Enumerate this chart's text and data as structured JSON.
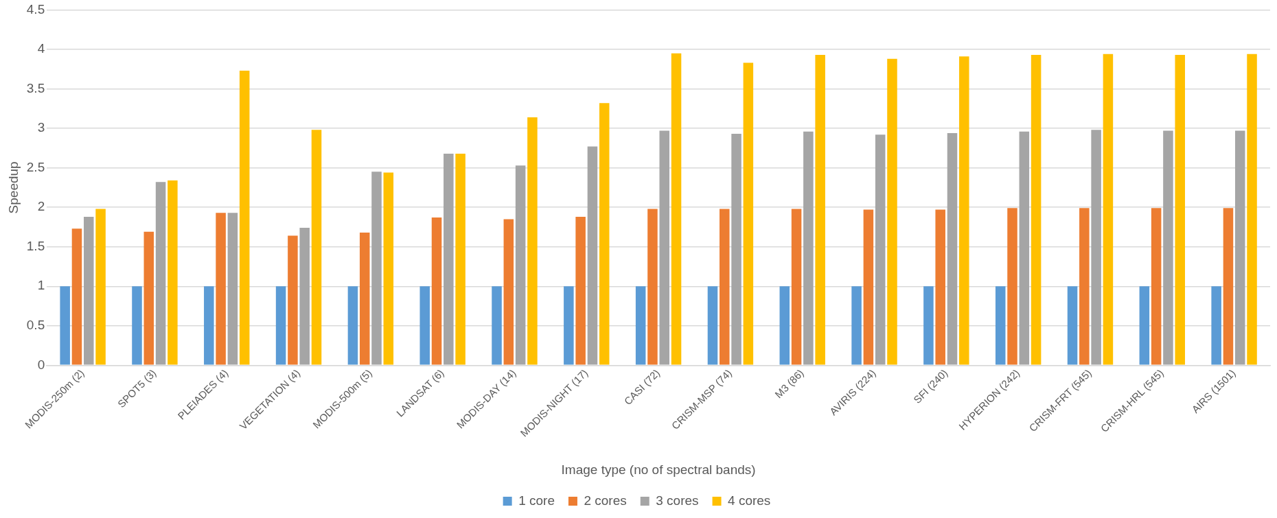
{
  "chart_data": {
    "type": "bar",
    "xlabel": "Image type (no of spectral bands)",
    "ylabel": "Speedup",
    "categories": [
      "MODIS-250m (2)",
      "SPOT5 (3)",
      "PLEIADES (4)",
      "VEGETATION (4)",
      "MODIS-500m (5)",
      "LANDSAT (6)",
      "MODIS-DAY (14)",
      "MODIS-NIGHT (17)",
      "CASI (72)",
      "CRISM-MSP (74)",
      "M3 (86)",
      "AVIRIS (224)",
      "SFI (240)",
      "HYPERION (242)",
      "CRISM-FRT (545)",
      "CRISM-HRL (545)",
      "AIRS (1501)"
    ],
    "series": [
      {
        "name": "1 core",
        "color": "#5b9bd5",
        "values": [
          1,
          1,
          1,
          1,
          1,
          1,
          1,
          1,
          1,
          1,
          1,
          1,
          1,
          1,
          1,
          1,
          1
        ]
      },
      {
        "name": "2 cores",
        "color": "#ed7d31",
        "values": [
          1.73,
          1.69,
          1.93,
          1.64,
          1.68,
          1.87,
          1.85,
          1.88,
          1.98,
          1.98,
          1.98,
          1.97,
          1.97,
          1.99,
          1.99,
          1.99,
          1.99
        ]
      },
      {
        "name": "3 cores",
        "color": "#a5a5a5",
        "values": [
          1.88,
          2.32,
          1.93,
          1.74,
          2.45,
          2.68,
          2.53,
          2.77,
          2.97,
          2.93,
          2.96,
          2.92,
          2.94,
          2.96,
          2.98,
          2.97,
          2.97
        ]
      },
      {
        "name": "4 cores",
        "color": "#ffc000",
        "values": [
          1.98,
          2.34,
          3.73,
          2.98,
          2.44,
          2.68,
          3.14,
          3.32,
          3.95,
          3.83,
          3.93,
          3.88,
          3.91,
          3.93,
          3.94,
          3.93,
          3.94
        ]
      }
    ],
    "ylim": [
      0,
      4.5
    ],
    "yticks": [
      0,
      0.5,
      1,
      1.5,
      2,
      2.5,
      3,
      3.5,
      4,
      4.5
    ],
    "grid": "y",
    "legend": "bottom"
  }
}
